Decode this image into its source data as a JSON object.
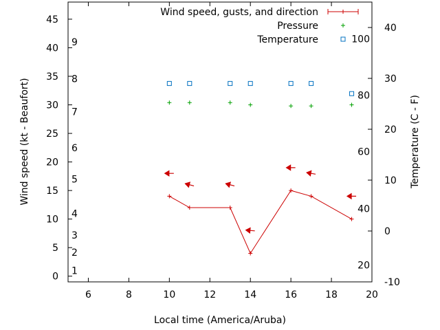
{
  "chart_data": {
    "type": "line",
    "xlabel": "Local time (America/Aruba)",
    "ylabel": "Wind speed (kt - Beaufort)",
    "y2label": "Temperature (C - F)",
    "xlim": [
      5,
      20
    ],
    "x_ticks": [
      6,
      8,
      10,
      12,
      14,
      16,
      18,
      20
    ],
    "ylim": [
      -1,
      48
    ],
    "y_ticks": [
      0,
      5,
      10,
      15,
      20,
      25,
      30,
      35,
      40,
      45
    ],
    "y2lim": [
      -10,
      45
    ],
    "y2_ticks": [
      -10,
      0,
      10,
      20,
      30,
      40
    ],
    "beaufort_labels": [
      {
        "value": 1,
        "speed_kt": 1
      },
      {
        "value": 2,
        "speed_kt": 4.2
      },
      {
        "value": 3,
        "speed_kt": 7.2
      },
      {
        "value": 4,
        "speed_kt": 11
      },
      {
        "value": 5,
        "speed_kt": 17
      },
      {
        "value": 6,
        "speed_kt": 22.5
      },
      {
        "value": 7,
        "speed_kt": 28.8
      },
      {
        "value": 8,
        "speed_kt": 34.6
      },
      {
        "value": 9,
        "speed_kt": 41
      }
    ],
    "fahrenheit_labels": [
      {
        "value": 20,
        "celsius": -6.7
      },
      {
        "value": 40,
        "celsius": 4.4
      },
      {
        "value": 60,
        "celsius": 15.6
      },
      {
        "value": 80,
        "celsius": 26.7
      },
      {
        "value": 100,
        "celsius": 37.8
      }
    ],
    "legend": {
      "placement": "top-right",
      "entries": [
        "Wind speed, gusts, and direction",
        "Pressure",
        "Temperature"
      ]
    },
    "series": [
      {
        "name": "Wind speed, gusts, and direction",
        "axis": "y",
        "color": "#cc0000",
        "x": [
          10,
          11,
          13,
          14,
          16,
          17,
          19
        ],
        "values": [
          14,
          12,
          12,
          4,
          15,
          14,
          10
        ]
      },
      {
        "name": "Wind direction arrows",
        "axis": "y",
        "color": "#cc0000",
        "x": [
          10,
          11,
          13,
          14,
          16,
          17,
          19
        ],
        "values": [
          18,
          16,
          16,
          8,
          19,
          18,
          14
        ],
        "direction_deg": [
          90,
          75,
          75,
          85,
          90,
          80,
          90
        ]
      },
      {
        "name": "Pressure",
        "axis": "y",
        "color": "#00a000",
        "x": [
          10,
          11,
          13,
          14,
          16,
          17,
          19
        ],
        "values": [
          30.4,
          30.4,
          30.4,
          30.0,
          29.8,
          29.8,
          30.0
        ]
      },
      {
        "name": "Temperature",
        "axis": "y2",
        "color": "#0070c0",
        "x": [
          10,
          11,
          13,
          14,
          16,
          17,
          19
        ],
        "values": [
          29,
          29,
          29,
          29,
          29,
          29,
          27
        ]
      }
    ]
  }
}
